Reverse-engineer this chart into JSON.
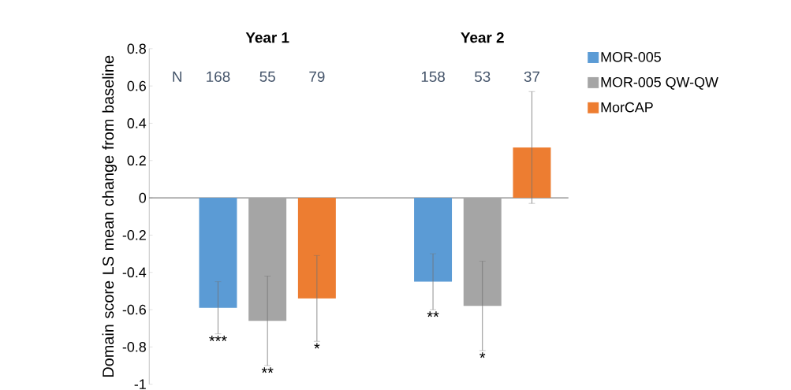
{
  "chart_data": {
    "type": "bar",
    "ylabel": "Domain score LS mean change from baseline",
    "categories": [
      "Year 1",
      "Year 2"
    ],
    "series": [
      {
        "name": "MOR-005",
        "color": "#5b9bd5",
        "values": [
          -0.59,
          -0.45
        ],
        "errors": [
          0.14,
          0.15
        ],
        "value_labels": [
          "***",
          "**"
        ]
      },
      {
        "name": "MOR-005 QW-QW",
        "color": "#a5a5a5",
        "values": [
          -0.66,
          -0.58
        ],
        "errors": [
          0.24,
          0.24
        ],
        "value_labels": [
          "**",
          "*"
        ]
      },
      {
        "name": "MorCAP",
        "color": "#ed7d31",
        "values": [
          -0.54,
          0.27
        ],
        "errors": [
          0.23,
          0.3
        ],
        "value_labels": [
          "*",
          null
        ]
      }
    ],
    "annotations": [
      "N",
      "168",
      "55",
      "79",
      "158",
      "53",
      "37"
    ],
    "ylim": [
      -1,
      0.8
    ],
    "yticks": [
      -1,
      -0.8,
      -0.6,
      -0.4,
      -0.2,
      0,
      0.2,
      0.4,
      0.6,
      0.8
    ],
    "legend": "top right"
  }
}
